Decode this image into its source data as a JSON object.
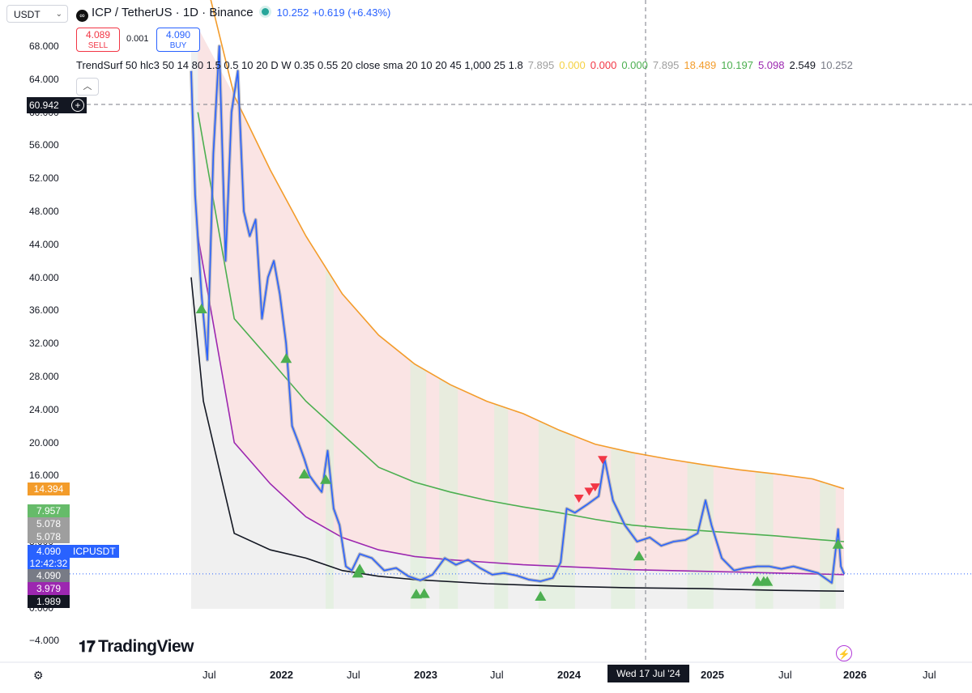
{
  "header": {
    "symbol_box": "USDT",
    "title": "ICP / TetherUS · 1D · Binance",
    "price": "10.252",
    "change": "+0.619 (+6.43%)",
    "sell_price": "4.089",
    "sell_label": "SELL",
    "buy_price": "4.090",
    "buy_label": "BUY",
    "spread": "0.001"
  },
  "indicator": {
    "name": "TrendSurf 50 hlc3 50 14 80 1.5 0.5 10 20 D W 0.35 0.55 20 close sma 20 10 20 45 1,000 25 1.8",
    "values": [
      {
        "text": "7.895",
        "color": "#9e9e9e"
      },
      {
        "text": "0.000",
        "color": "#f5d142"
      },
      {
        "text": "0.000",
        "color": "#f23645"
      },
      {
        "text": "0.000",
        "color": "#4caf50"
      },
      {
        "text": "7.895",
        "color": "#9e9e9e"
      },
      {
        "text": "18.489",
        "color": "#f39c2b"
      },
      {
        "text": "10.197",
        "color": "#4caf50"
      },
      {
        "text": "5.098",
        "color": "#9c27b0"
      },
      {
        "text": "2.549",
        "color": "#131722"
      },
      {
        "text": "10.252",
        "color": "#787b86"
      }
    ]
  },
  "price_axis": {
    "ticks": [
      "68.000",
      "64.000",
      "60.000",
      "56.000",
      "52.000",
      "48.000",
      "44.000",
      "40.000",
      "36.000",
      "32.000",
      "28.000",
      "24.000",
      "20.000",
      "16.000",
      "12.000",
      "8.000",
      "4.000",
      "0.000",
      "−4.000"
    ],
    "tags": [
      {
        "text": "14.394",
        "color": "#f39c2b"
      },
      {
        "text": "7.957",
        "color": "#66bb6a"
      },
      {
        "text": "5.078",
        "color": "#9e9e9e"
      },
      {
        "text": "5.078",
        "color": "#9e9e9e"
      },
      {
        "text": "4.090",
        "color": "#2962ff"
      },
      {
        "text": "12:42:32",
        "color": "#2962ff"
      },
      {
        "text": "4.090",
        "color": "#787b86"
      },
      {
        "text": "3.979",
        "color": "#9c27b0"
      },
      {
        "text": "1.989",
        "color": "#131722"
      }
    ],
    "ticker_label": "ICPUSDT",
    "crosshair_price": "60.942"
  },
  "time_axis": {
    "ticks": [
      {
        "label": "Jul",
        "bold": false
      },
      {
        "label": "2022",
        "bold": true
      },
      {
        "label": "Jul",
        "bold": false
      },
      {
        "label": "2023",
        "bold": true
      },
      {
        "label": "Jul",
        "bold": false
      },
      {
        "label": "2024",
        "bold": true
      },
      {
        "label": "2025",
        "bold": true
      },
      {
        "label": "Jul",
        "bold": false
      },
      {
        "label": "2026",
        "bold": true
      },
      {
        "label": "Jul",
        "bold": false
      }
    ],
    "crosshair_date": "Wed 17 Jul '24"
  },
  "branding": {
    "logo_text": "TradingView"
  },
  "chart_data": {
    "type": "line",
    "title": "ICP / TetherUS · 1D · Binance",
    "ylim": [
      -6,
      70
    ],
    "grid": false,
    "series": [
      {
        "name": "ICPUSDT",
        "color": "#2962ff",
        "x": [
          "2021-05-15",
          "2021-05-25",
          "2021-06-10",
          "2021-06-25",
          "2021-07-10",
          "2021-07-25",
          "2021-08-10",
          "2021-08-25",
          "2021-09-10",
          "2021-09-25",
          "2021-10-10",
          "2021-10-25",
          "2021-11-10",
          "2021-11-25",
          "2021-12-10",
          "2021-12-25",
          "2022-01-10",
          "2022-01-25",
          "2022-02-10",
          "2022-02-25",
          "2022-03-10",
          "2022-03-25",
          "2022-04-10",
          "2022-04-25",
          "2022-05-10",
          "2022-05-25",
          "2022-06-10",
          "2022-06-25",
          "2022-07-15",
          "2022-08-15",
          "2022-09-15",
          "2022-10-15",
          "2022-11-15",
          "2022-12-15",
          "2023-01-15",
          "2023-02-15",
          "2023-03-15",
          "2023-04-15",
          "2023-05-15",
          "2023-06-15",
          "2023-07-15",
          "2023-08-15",
          "2023-09-15",
          "2023-10-15",
          "2023-11-15",
          "2023-12-05",
          "2023-12-20",
          "2024-01-10",
          "2024-02-10",
          "2024-03-10",
          "2024-03-25",
          "2024-04-15",
          "2024-05-15",
          "2024-06-15",
          "2024-07-17",
          "2024-08-15",
          "2024-09-15",
          "2024-10-15",
          "2024-11-15",
          "2024-12-05",
          "2024-12-20",
          "2025-01-15",
          "2025-02-15",
          "2025-03-15",
          "2025-04-15",
          "2025-05-15",
          "2025-06-15",
          "2025-07-15",
          "2025-08-15",
          "2025-09-15",
          "2025-10-20",
          "2025-11-05",
          "2025-11-12",
          "2025-11-20"
        ],
        "values": [
          65,
          50,
          38,
          30,
          55,
          68,
          42,
          60,
          65,
          48,
          45,
          47,
          35,
          40,
          42,
          38,
          32,
          22,
          20,
          18,
          16,
          15,
          14,
          19,
          12,
          10,
          5,
          4.5,
          6.5,
          6.0,
          4.5,
          4.8,
          3.8,
          3.3,
          4.0,
          6.0,
          5.2,
          5.8,
          4.8,
          4.0,
          4.2,
          3.9,
          3.4,
          3.2,
          3.6,
          5.5,
          12.0,
          11.5,
          12.5,
          13.5,
          18.0,
          13.0,
          10.0,
          8.0,
          8.5,
          7.5,
          8.0,
          8.2,
          9.0,
          13.0,
          10.0,
          6.0,
          4.5,
          4.8,
          5.0,
          5.0,
          4.7,
          5.0,
          4.6,
          4.2,
          3.0,
          9.5,
          5.0,
          4.1
        ]
      },
      {
        "name": "Upper band",
        "color": "#f39c2b",
        "x": [
          "2021-06-01",
          "2021-09-01",
          "2021-12-01",
          "2022-03-01",
          "2022-06-01",
          "2022-09-01",
          "2022-12-01",
          "2023-03-01",
          "2023-06-01",
          "2023-09-01",
          "2023-12-01",
          "2024-03-01",
          "2024-06-01",
          "2024-09-01",
          "2024-12-01",
          "2025-03-01",
          "2025-06-01",
          "2025-09-01",
          "2025-11-20"
        ],
        "values": [
          80,
          62,
          53,
          45,
          38,
          33,
          29.5,
          27,
          25,
          23.5,
          21.5,
          19.8,
          18.8,
          18,
          17.3,
          16.7,
          16.2,
          15.6,
          14.4
        ]
      },
      {
        "name": "Mid band",
        "color": "#4caf50",
        "x": [
          "2021-06-01",
          "2021-09-01",
          "2021-12-01",
          "2022-03-01",
          "2022-06-01",
          "2022-09-01",
          "2022-12-01",
          "2023-03-01",
          "2023-06-01",
          "2023-09-01",
          "2023-12-01",
          "2024-03-01",
          "2024-06-01",
          "2024-09-01",
          "2024-12-01",
          "2025-03-01",
          "2025-06-01",
          "2025-09-01",
          "2025-11-20"
        ],
        "values": [
          60,
          35,
          30,
          25,
          21,
          17,
          15.2,
          14,
          13,
          12.2,
          11.5,
          10.7,
          10,
          9.6,
          9.3,
          9,
          8.7,
          8.3,
          8.0
        ]
      },
      {
        "name": "Lower band",
        "color": "#9c27b0",
        "x": [
          "2021-06-01",
          "2021-09-01",
          "2021-12-01",
          "2022-03-01",
          "2022-06-01",
          "2022-09-01",
          "2022-12-01",
          "2023-03-01",
          "2023-06-01",
          "2023-09-01",
          "2023-12-01",
          "2024-03-01",
          "2024-06-01",
          "2024-09-01",
          "2024-12-01",
          "2025-03-01",
          "2025-06-01",
          "2025-09-01",
          "2025-11-20"
        ],
        "values": [
          45,
          20,
          15,
          11,
          8.5,
          7,
          6.2,
          5.8,
          5.5,
          5.2,
          5.0,
          4.8,
          4.6,
          4.5,
          4.4,
          4.3,
          4.2,
          4.1,
          4.0
        ]
      },
      {
        "name": "Base line",
        "color": "#131722",
        "x": [
          "2021-05-15",
          "2021-06-15",
          "2021-09-01",
          "2021-12-01",
          "2022-03-01",
          "2022-06-01",
          "2022-09-01",
          "2022-12-01",
          "2023-06-01",
          "2023-12-01",
          "2024-06-01",
          "2024-12-01",
          "2025-06-01",
          "2025-11-20"
        ],
        "values": [
          40,
          25,
          9,
          7,
          6,
          4.5,
          3.8,
          3.4,
          2.9,
          2.6,
          2.4,
          2.3,
          2.1,
          2.0
        ]
      }
    ],
    "signals_up": [
      "2021-06-10",
      "2022-01-10",
      "2022-02-25",
      "2022-04-20",
      "2022-07-10",
      "2022-07-15",
      "2022-12-05",
      "2022-12-25",
      "2023-10-15",
      "2024-06-20",
      "2025-04-15",
      "2025-05-01",
      "2025-05-10",
      "2025-11-05"
    ],
    "signals_down": [
      "2024-01-20",
      "2024-02-15",
      "2024-03-01",
      "2024-03-20"
    ]
  }
}
